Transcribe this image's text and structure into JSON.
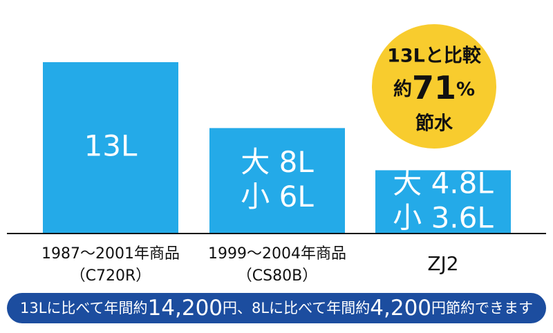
{
  "chart_data": {
    "type": "bar",
    "categories": [
      "1987〜2001年商品",
      "1999〜2004年商品",
      "ZJ2"
    ],
    "category_codes": [
      "（C720R）",
      "（CS80B）",
      null
    ],
    "values": [
      13,
      8,
      4.8
    ],
    "value_labels": [
      "13L",
      "大 8L",
      "大 4.8L"
    ],
    "secondary_values": [
      null,
      6,
      3.6
    ],
    "secondary_value_labels": [
      null,
      "小 6L",
      "小 3.6L"
    ],
    "color": "#24aae8",
    "ylim": [
      0,
      13
    ],
    "badge": {
      "line1": "13Lと比較",
      "prefix": "約",
      "number": "71",
      "unit": "%",
      "line3": "節水"
    },
    "footer": [
      "13Lに比べて年間約",
      "14,200",
      "円、8Lに比べて年間約",
      "4,200",
      "円節約できます"
    ]
  }
}
